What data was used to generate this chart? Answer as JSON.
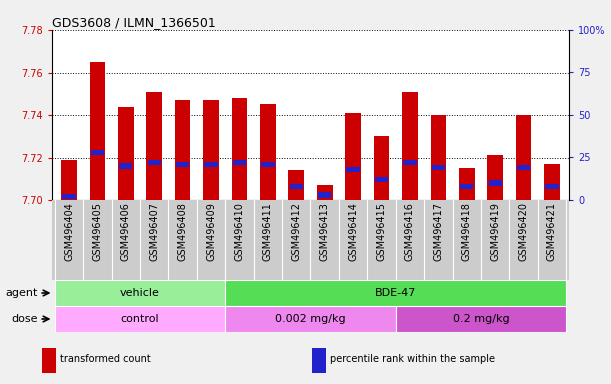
{
  "title": "GDS3608 / ILMN_1366501",
  "samples": [
    "GSM496404",
    "GSM496405",
    "GSM496406",
    "GSM496407",
    "GSM496408",
    "GSM496409",
    "GSM496410",
    "GSM496411",
    "GSM496412",
    "GSM496413",
    "GSM496414",
    "GSM496415",
    "GSM496416",
    "GSM496417",
    "GSM496418",
    "GSM496419",
    "GSM496420",
    "GSM496421"
  ],
  "transformed_count": [
    7.719,
    7.765,
    7.744,
    7.751,
    7.747,
    7.747,
    7.748,
    7.745,
    7.714,
    7.707,
    7.741,
    7.73,
    7.751,
    7.74,
    7.715,
    7.721,
    7.74,
    7.717
  ],
  "percentile_rank": [
    2,
    28,
    20,
    22,
    21,
    21,
    22,
    21,
    8,
    3,
    18,
    12,
    22,
    19,
    8,
    10,
    19,
    8
  ],
  "y_min": 7.7,
  "y_max": 7.78,
  "y_ticks": [
    7.7,
    7.72,
    7.74,
    7.76,
    7.78
  ],
  "right_y_ticks": [
    0,
    25,
    50,
    75,
    100
  ],
  "right_y_labels": [
    "0",
    "25",
    "50",
    "75",
    "100%"
  ],
  "bar_color_red": "#cc0000",
  "bar_color_blue": "#2222cc",
  "agent_groups": [
    {
      "label": "vehicle",
      "start": 0,
      "end": 6,
      "color": "#99ee99"
    },
    {
      "label": "BDE-47",
      "start": 6,
      "end": 18,
      "color": "#55dd55"
    }
  ],
  "dose_groups": [
    {
      "label": "control",
      "start": 0,
      "end": 6,
      "color": "#ffaaff"
    },
    {
      "label": "0.002 mg/kg",
      "start": 6,
      "end": 12,
      "color": "#ee88ee"
    },
    {
      "label": "0.2 mg/kg",
      "start": 12,
      "end": 18,
      "color": "#cc55cc"
    }
  ],
  "legend_items": [
    {
      "label": "transformed count",
      "color": "#cc0000"
    },
    {
      "label": "percentile rank within the sample",
      "color": "#2222cc"
    }
  ],
  "plot_bg_color": "#ffffff",
  "xtick_bg_color": "#cccccc",
  "title_fontsize": 9,
  "tick_fontsize": 7,
  "label_fontsize": 8,
  "bar_width": 0.55
}
